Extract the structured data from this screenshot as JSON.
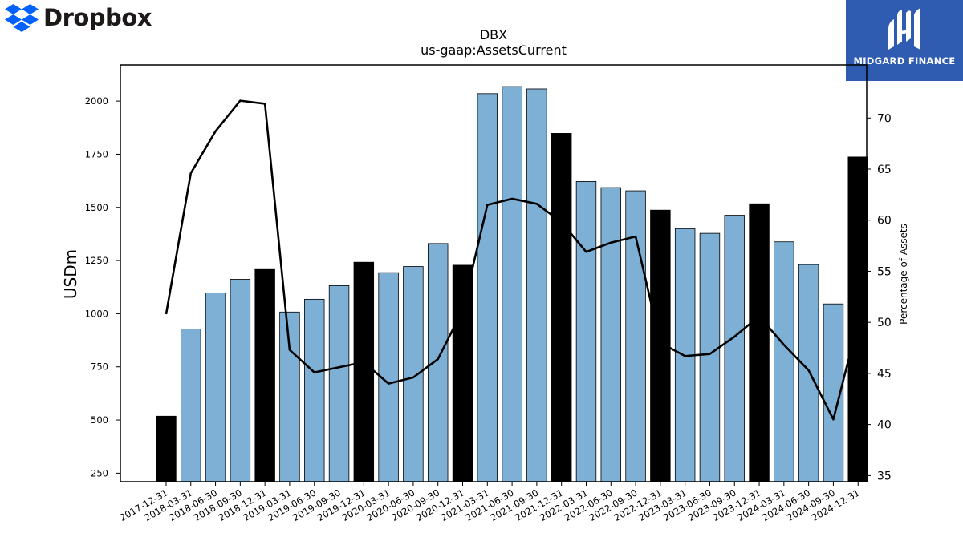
{
  "brand": {
    "left_name": "Dropbox",
    "left_color": "#0061fe",
    "right_name": "MIDGARD FINANCE",
    "right_color": "#2f5bb0"
  },
  "chart_data": {
    "type": "bar",
    "title": "DBX",
    "subtitle": "us-gaap:AssetsCurrent",
    "ylabel": "USDm",
    "y2label": "Percentage of Assets",
    "ylim": [
      210,
      2170
    ],
    "y2lim": [
      34.4,
      75.2
    ],
    "yticks": [
      250,
      500,
      750,
      1000,
      1250,
      1500,
      1750,
      2000
    ],
    "y2ticks": [
      35,
      40,
      45,
      50,
      55,
      60,
      65,
      70
    ],
    "bar_color_quarter": "#7eb0d5",
    "bar_color_year_end": "#000000",
    "line_color": "#000000",
    "categories": [
      "2017-12-31",
      "2018-03-31",
      "2018-06-30",
      "2018-09-30",
      "2018-12-31",
      "2019-03-31",
      "2019-06-30",
      "2019-09-30",
      "2019-12-31",
      "2020-03-31",
      "2020-06-30",
      "2020-09-30",
      "2020-12-31",
      "2021-03-31",
      "2021-06-30",
      "2021-09-30",
      "2021-12-31",
      "2022-03-31",
      "2022-06-30",
      "2022-09-30",
      "2022-12-31",
      "2023-03-31",
      "2023-06-30",
      "2023-09-30",
      "2023-12-31",
      "2024-03-31",
      "2024-06-30",
      "2024-09-30",
      "2024-12-31"
    ],
    "series": [
      {
        "axis": "left",
        "kind": "bar",
        "values": [
          518,
          928,
          1098,
          1162,
          1208,
          1008,
          1068,
          1132,
          1242,
          1193,
          1222,
          1330,
          1228,
          2035,
          2068,
          2057,
          1848,
          1622,
          1593,
          1578,
          1487,
          1400,
          1378,
          1463,
          1517,
          1338,
          1231,
          1046,
          1737
        ],
        "year_end": [
          true,
          false,
          false,
          false,
          true,
          false,
          false,
          false,
          true,
          false,
          false,
          false,
          true,
          false,
          false,
          false,
          true,
          false,
          false,
          false,
          true,
          false,
          false,
          false,
          true,
          false,
          false,
          false,
          true
        ]
      },
      {
        "axis": "right",
        "kind": "line",
        "values": [
          50.8,
          64.6,
          68.7,
          71.7,
          71.4,
          47.3,
          45.1,
          45.6,
          46.1,
          44.0,
          44.6,
          46.4,
          51.2,
          61.5,
          62.1,
          61.6,
          59.8,
          56.9,
          57.8,
          58.4,
          48.0,
          46.7,
          46.9,
          48.6,
          50.6,
          47.8,
          45.3,
          40.5,
          50.0
        ]
      }
    ]
  }
}
